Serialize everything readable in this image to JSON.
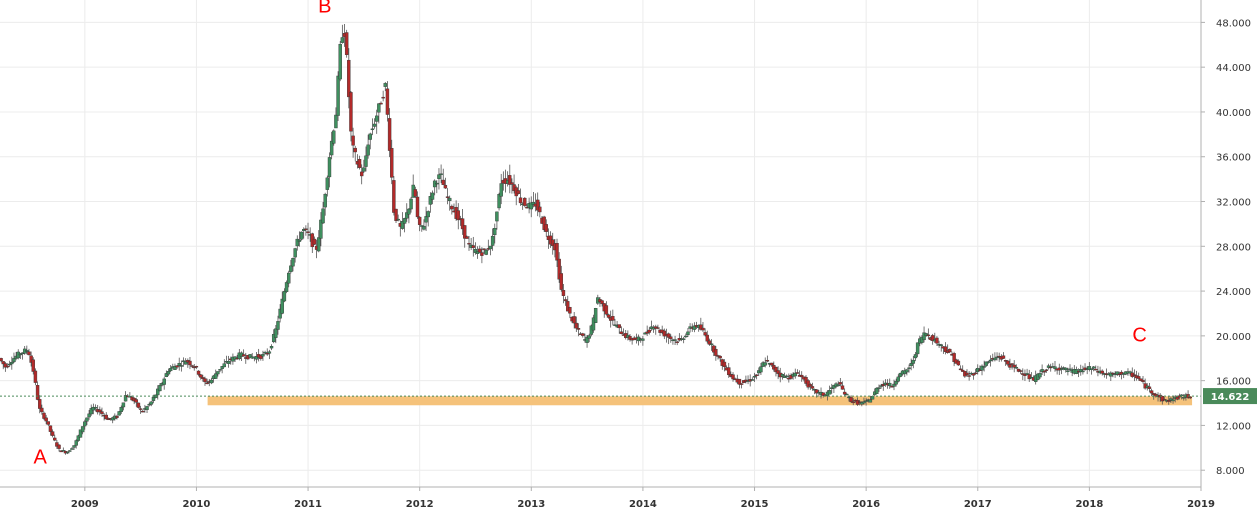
{
  "chart_data": {
    "type": "candlestick",
    "x_axis": {
      "ticks": [
        "2009",
        "2010",
        "2011",
        "2012",
        "2013",
        "2014",
        "2015",
        "2016",
        "2017",
        "2018",
        "2019"
      ],
      "range": [
        2008.24,
        2019.0
      ]
    },
    "y_axis": {
      "ticks": [
        "8.000",
        "12.000",
        "16.000",
        "20.000",
        "24.000",
        "28.000",
        "32.000",
        "36.000",
        "40.000",
        "44.000",
        "48.000"
      ],
      "range": [
        6.5,
        50.0
      ],
      "position": "right"
    },
    "grid": true,
    "last_price": {
      "value": 14.622,
      "label": "14.622",
      "color": "#4a8a5a"
    },
    "support_zone": {
      "from_x": 2010.1,
      "to_x": 2018.92,
      "low": 13.8,
      "high": 14.6,
      "color": "#f5c27a"
    },
    "annotations": [
      {
        "text": "A",
        "x": 2008.6,
        "y": 8.6
      },
      {
        "text": "B",
        "x": 2011.15,
        "y": 48.9
      },
      {
        "text": "C",
        "x": 2018.45,
        "y": 19.5
      }
    ],
    "price_path": [
      [
        2008.24,
        18.0
      ],
      [
        2008.3,
        17.2
      ],
      [
        2008.35,
        17.8
      ],
      [
        2008.42,
        18.4
      ],
      [
        2008.5,
        18.8
      ],
      [
        2008.55,
        16.8
      ],
      [
        2008.6,
        13.5
      ],
      [
        2008.66,
        12.5
      ],
      [
        2008.72,
        11.0
      ],
      [
        2008.78,
        9.8
      ],
      [
        2008.85,
        9.6
      ],
      [
        2008.92,
        10.3
      ],
      [
        2009.0,
        12.2
      ],
      [
        2009.08,
        13.6
      ],
      [
        2009.15,
        13.2
      ],
      [
        2009.22,
        12.5
      ],
      [
        2009.3,
        12.8
      ],
      [
        2009.38,
        14.8
      ],
      [
        2009.45,
        14.2
      ],
      [
        2009.52,
        13.2
      ],
      [
        2009.6,
        14.0
      ],
      [
        2009.68,
        15.4
      ],
      [
        2009.76,
        17.0
      ],
      [
        2009.84,
        17.4
      ],
      [
        2009.92,
        17.8
      ],
      [
        2010.0,
        17.2
      ],
      [
        2010.08,
        15.8
      ],
      [
        2010.14,
        16.0
      ],
      [
        2010.2,
        16.9
      ],
      [
        2010.3,
        17.8
      ],
      [
        2010.4,
        18.3
      ],
      [
        2010.5,
        18.1
      ],
      [
        2010.6,
        18.2
      ],
      [
        2010.66,
        18.6
      ],
      [
        2010.72,
        20.5
      ],
      [
        2010.78,
        23.2
      ],
      [
        2010.84,
        26.0
      ],
      [
        2010.9,
        28.0
      ],
      [
        2010.96,
        29.5
      ],
      [
        2011.02,
        29.0
      ],
      [
        2011.08,
        27.5
      ],
      [
        2011.14,
        31.0
      ],
      [
        2011.2,
        36.0
      ],
      [
        2011.26,
        40.0
      ],
      [
        2011.3,
        46.0
      ],
      [
        2011.33,
        48.0
      ],
      [
        2011.36,
        44.0
      ],
      [
        2011.4,
        37.0
      ],
      [
        2011.45,
        35.5
      ],
      [
        2011.5,
        34.2
      ],
      [
        2011.55,
        37.5
      ],
      [
        2011.6,
        39.0
      ],
      [
        2011.65,
        40.5
      ],
      [
        2011.7,
        42.5
      ],
      [
        2011.74,
        37.0
      ],
      [
        2011.78,
        31.0
      ],
      [
        2011.84,
        29.5
      ],
      [
        2011.9,
        31.0
      ],
      [
        2011.96,
        33.5
      ],
      [
        2012.0,
        29.5
      ],
      [
        2012.05,
        30.0
      ],
      [
        2012.1,
        32.0
      ],
      [
        2012.15,
        34.0
      ],
      [
        2012.2,
        34.2
      ],
      [
        2012.25,
        32.5
      ],
      [
        2012.3,
        31.5
      ],
      [
        2012.38,
        30.0
      ],
      [
        2012.45,
        28.0
      ],
      [
        2012.52,
        27.5
      ],
      [
        2012.6,
        27.5
      ],
      [
        2012.66,
        28.5
      ],
      [
        2012.7,
        31.0
      ],
      [
        2012.74,
        33.8
      ],
      [
        2012.8,
        34.0
      ],
      [
        2012.86,
        33.2
      ],
      [
        2012.92,
        32.0
      ],
      [
        2013.0,
        31.5
      ],
      [
        2013.05,
        31.8
      ],
      [
        2013.1,
        30.5
      ],
      [
        2013.15,
        29.0
      ],
      [
        2013.22,
        28.0
      ],
      [
        2013.28,
        24.0
      ],
      [
        2013.35,
        22.0
      ],
      [
        2013.42,
        20.5
      ],
      [
        2013.5,
        19.5
      ],
      [
        2013.56,
        21.0
      ],
      [
        2013.6,
        23.5
      ],
      [
        2013.66,
        22.5
      ],
      [
        2013.72,
        21.5
      ],
      [
        2013.8,
        20.5
      ],
      [
        2013.88,
        19.8
      ],
      [
        2013.96,
        19.6
      ],
      [
        2014.04,
        20.2
      ],
      [
        2014.1,
        21.0
      ],
      [
        2014.18,
        20.3
      ],
      [
        2014.26,
        19.8
      ],
      [
        2014.34,
        19.5
      ],
      [
        2014.42,
        20.5
      ],
      [
        2014.48,
        21.0
      ],
      [
        2014.54,
        20.5
      ],
      [
        2014.6,
        19.5
      ],
      [
        2014.66,
        18.5
      ],
      [
        2014.74,
        17.2
      ],
      [
        2014.82,
        16.2
      ],
      [
        2014.88,
        15.8
      ],
      [
        2014.96,
        16.0
      ],
      [
        2015.04,
        16.6
      ],
      [
        2015.1,
        17.8
      ],
      [
        2015.16,
        17.3
      ],
      [
        2015.24,
        16.5
      ],
      [
        2015.32,
        16.3
      ],
      [
        2015.4,
        16.7
      ],
      [
        2015.46,
        16.0
      ],
      [
        2015.52,
        15.2
      ],
      [
        2015.58,
        14.9
      ],
      [
        2015.64,
        14.7
      ],
      [
        2015.7,
        15.3
      ],
      [
        2015.76,
        15.8
      ],
      [
        2015.82,
        14.8
      ],
      [
        2015.88,
        14.2
      ],
      [
        2015.94,
        14.0
      ],
      [
        2016.0,
        14.0
      ],
      [
        2016.06,
        14.5
      ],
      [
        2016.12,
        15.5
      ],
      [
        2016.18,
        15.8
      ],
      [
        2016.24,
        15.5
      ],
      [
        2016.3,
        16.5
      ],
      [
        2016.36,
        16.8
      ],
      [
        2016.42,
        17.5
      ],
      [
        2016.48,
        19.5
      ],
      [
        2016.54,
        20.3
      ],
      [
        2016.6,
        19.8
      ],
      [
        2016.66,
        19.3
      ],
      [
        2016.72,
        18.8
      ],
      [
        2016.78,
        18.2
      ],
      [
        2016.84,
        17.2
      ],
      [
        2016.9,
        16.4
      ],
      [
        2016.96,
        16.6
      ],
      [
        2017.04,
        17.2
      ],
      [
        2017.12,
        17.8
      ],
      [
        2017.2,
        18.2
      ],
      [
        2017.28,
        17.5
      ],
      [
        2017.36,
        17.0
      ],
      [
        2017.44,
        16.6
      ],
      [
        2017.5,
        16.0
      ],
      [
        2017.56,
        16.6
      ],
      [
        2017.62,
        17.1
      ],
      [
        2017.7,
        17.2
      ],
      [
        2017.78,
        17.0
      ],
      [
        2017.86,
        16.8
      ],
      [
        2017.94,
        16.9
      ],
      [
        2018.0,
        17.1
      ],
      [
        2018.06,
        17.0
      ],
      [
        2018.14,
        16.6
      ],
      [
        2018.22,
        16.5
      ],
      [
        2018.3,
        16.7
      ],
      [
        2018.38,
        16.6
      ],
      [
        2018.44,
        16.3
      ],
      [
        2018.5,
        15.6
      ],
      [
        2018.56,
        15.1
      ],
      [
        2018.62,
        14.6
      ],
      [
        2018.68,
        14.2
      ],
      [
        2018.74,
        14.3
      ],
      [
        2018.8,
        14.5
      ],
      [
        2018.86,
        14.6
      ],
      [
        2018.9,
        14.6
      ]
    ]
  }
}
